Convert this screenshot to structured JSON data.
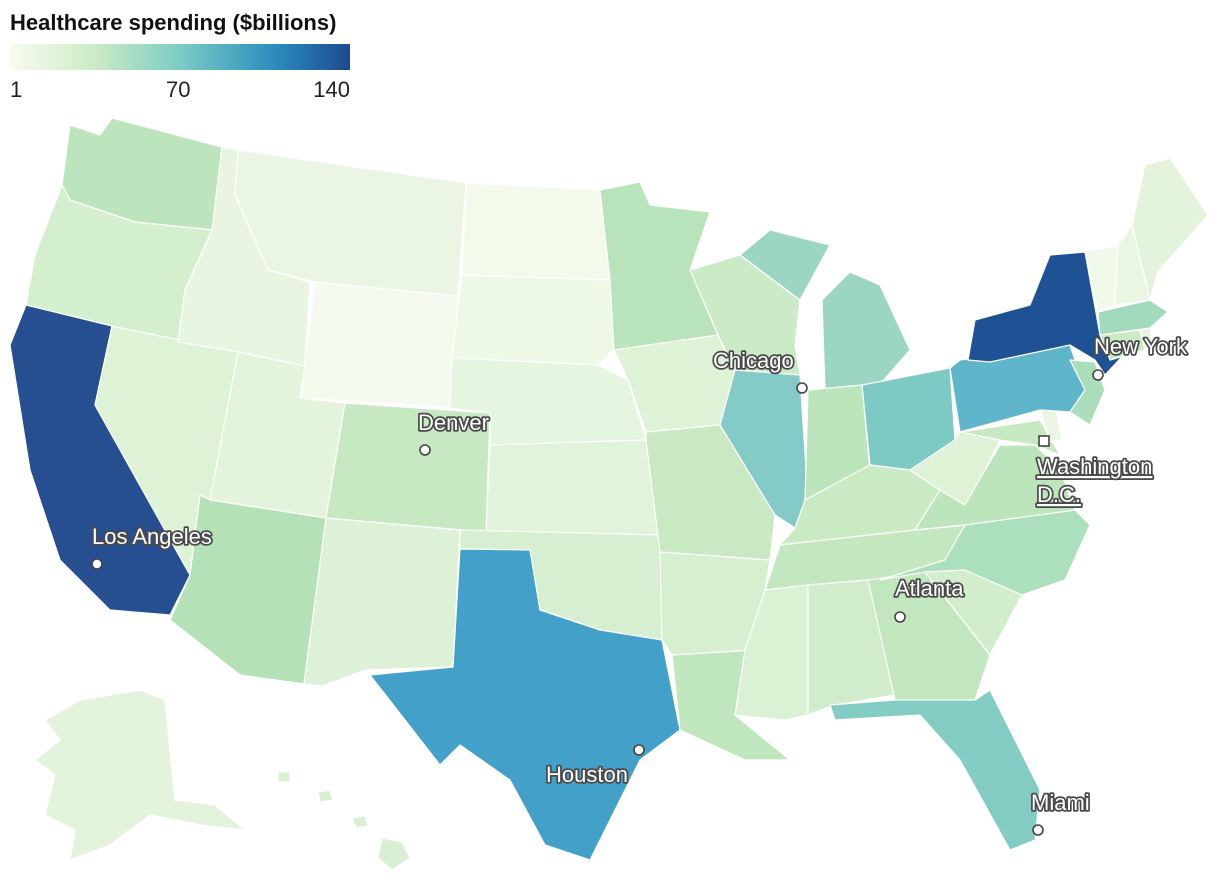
{
  "legend": {
    "title": "Healthcare spending ($billions)",
    "min_label": "1",
    "mid_label": "70",
    "max_label": "140",
    "min": 1,
    "mid": 70,
    "max": 140,
    "color_stops": [
      "#f7fcf0",
      "#ccebc5",
      "#7bccc4",
      "#2b8cbe",
      "#1d4a8f"
    ]
  },
  "cities": [
    {
      "id": "los-angeles",
      "name": "Los Angeles"
    },
    {
      "id": "denver",
      "name": "Denver"
    },
    {
      "id": "chicago",
      "name": "Chicago"
    },
    {
      "id": "new-york",
      "name": "New York"
    },
    {
      "id": "washington-dc",
      "name": "Washington D.C.",
      "line1": "Washington",
      "line2": "D.C.",
      "capital": true
    },
    {
      "id": "atlanta",
      "name": "Atlanta"
    },
    {
      "id": "houston",
      "name": "Houston"
    },
    {
      "id": "miami",
      "name": "Miami"
    }
  ],
  "state_colors": {
    "california": "#264f91",
    "new-york": "#1f5295",
    "texas": "#43a0c8",
    "pennsylvania": "#5fb6cb",
    "illinois": "#84cbc7",
    "ohio": "#7dc9c4",
    "florida": "#82ccc3",
    "michigan": "#9bd6c3",
    "washington": "#bde5bd",
    "oregon": "#d4efcd",
    "idaho": "#e8f5e0",
    "montana": "#eaf6e3",
    "wyoming": "#f4faed",
    "nevada": "#def2d5",
    "utah": "#e4f4dc",
    "arizona": "#b4e1b6",
    "colorado": "#c6e9c1",
    "new-mexico": "#dcf1d6",
    "north-dakota": "#f3faec",
    "south-dakota": "#eef8e7",
    "nebraska": "#e6f5df",
    "kansas": "#e2f3db",
    "oklahoma": "#d6efd0",
    "minnesota": "#b9e3ba",
    "iowa": "#def2d6",
    "missouri": "#c8e9c2",
    "arkansas": "#d6efcf",
    "louisiana": "#bfe6bd",
    "wisconsin": "#cbeac6",
    "indiana": "#bde5bb",
    "kentucky": "#c9eac3",
    "tennessee": "#c3e8bf",
    "mississippi": "#daf1d3",
    "alabama": "#d0ecca",
    "georgia": "#c2e7be",
    "south-carolina": "#d2edcb",
    "north-carolina": "#acdfbb",
    "virginia": "#bde5bb",
    "west-virginia": "#def2d6",
    "maryland": "#c7e9c1",
    "delaware": "#eaf6e4",
    "new-jersey": "#aadeba",
    "connecticut": "#c9eac3",
    "massachusetts": "#a2dabd",
    "rhode-island": "#e6f5df",
    "vermont": "#f0f9ea",
    "new-hampshire": "#e9f6e2",
    "maine": "#e4f4dc",
    "alaska": "#e4f4dc",
    "hawaii": "#d8f0d1"
  }
}
